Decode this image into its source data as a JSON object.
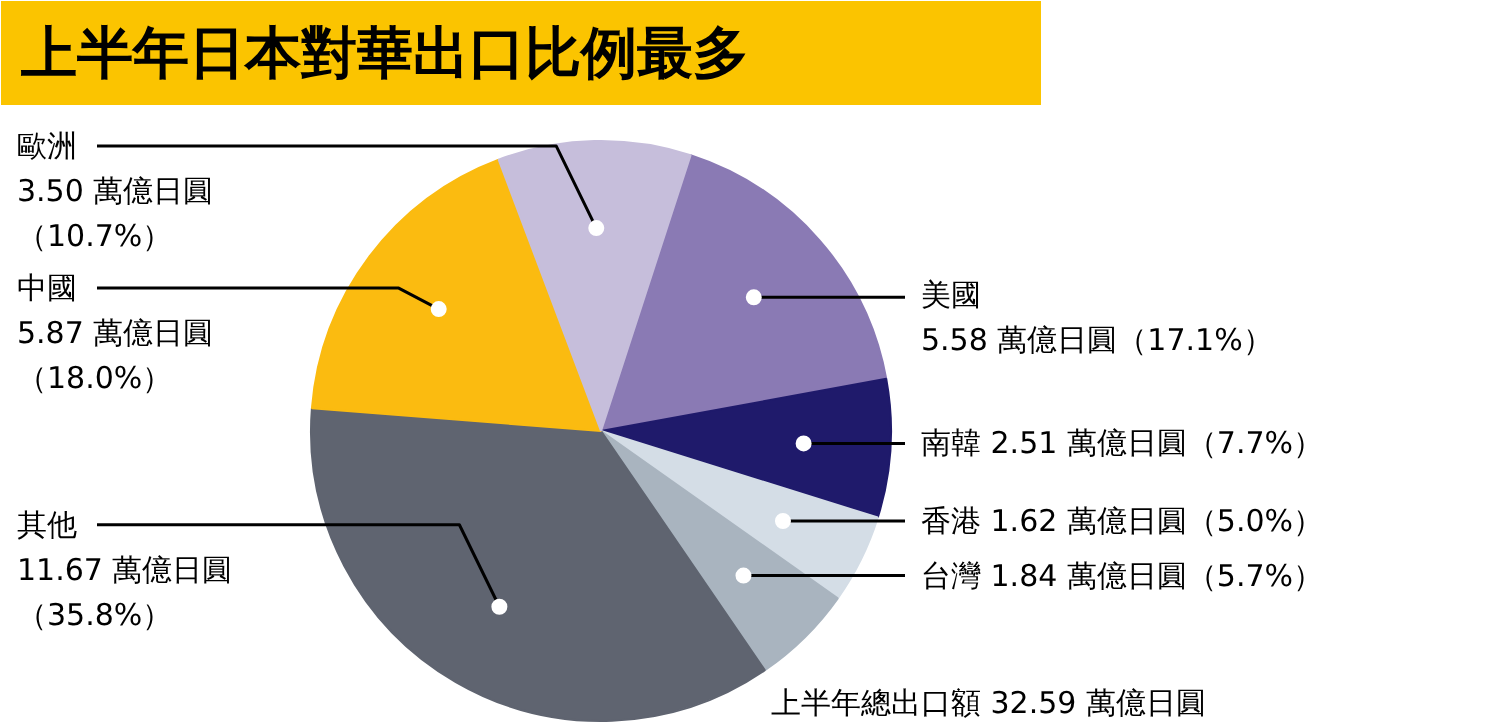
{
  "chart_data": {
    "type": "pie",
    "title": "上半年日本對華出口比例最多",
    "categories": [
      "美國",
      "南韓",
      "香港",
      "台灣",
      "其他",
      "中國",
      "歐洲"
    ],
    "values": [
      5.58,
      2.51,
      1.62,
      1.84,
      11.67,
      5.87,
      3.5
    ],
    "colors": [
      "#8a7ab4",
      "#1f1a6b",
      "#d4dde6",
      "#a9b4bf",
      "#5f6470",
      "#fbbb10",
      "#c6bedb"
    ],
    "value_labels": [
      "5.58 萬億日圓（17.1%）",
      "2.51 萬億日圓（7.7%）",
      "1.62 萬億日圓（5.0%）",
      "1.84 萬億日圓（5.7%）",
      "11.67 萬億日圓（35.8%）",
      "5.87 萬億日圓（18.0%）",
      "3.50 萬億日圓（10.7%）"
    ],
    "annotations": [
      "上半年總出口額 32.59 萬億日圓"
    ]
  }
}
